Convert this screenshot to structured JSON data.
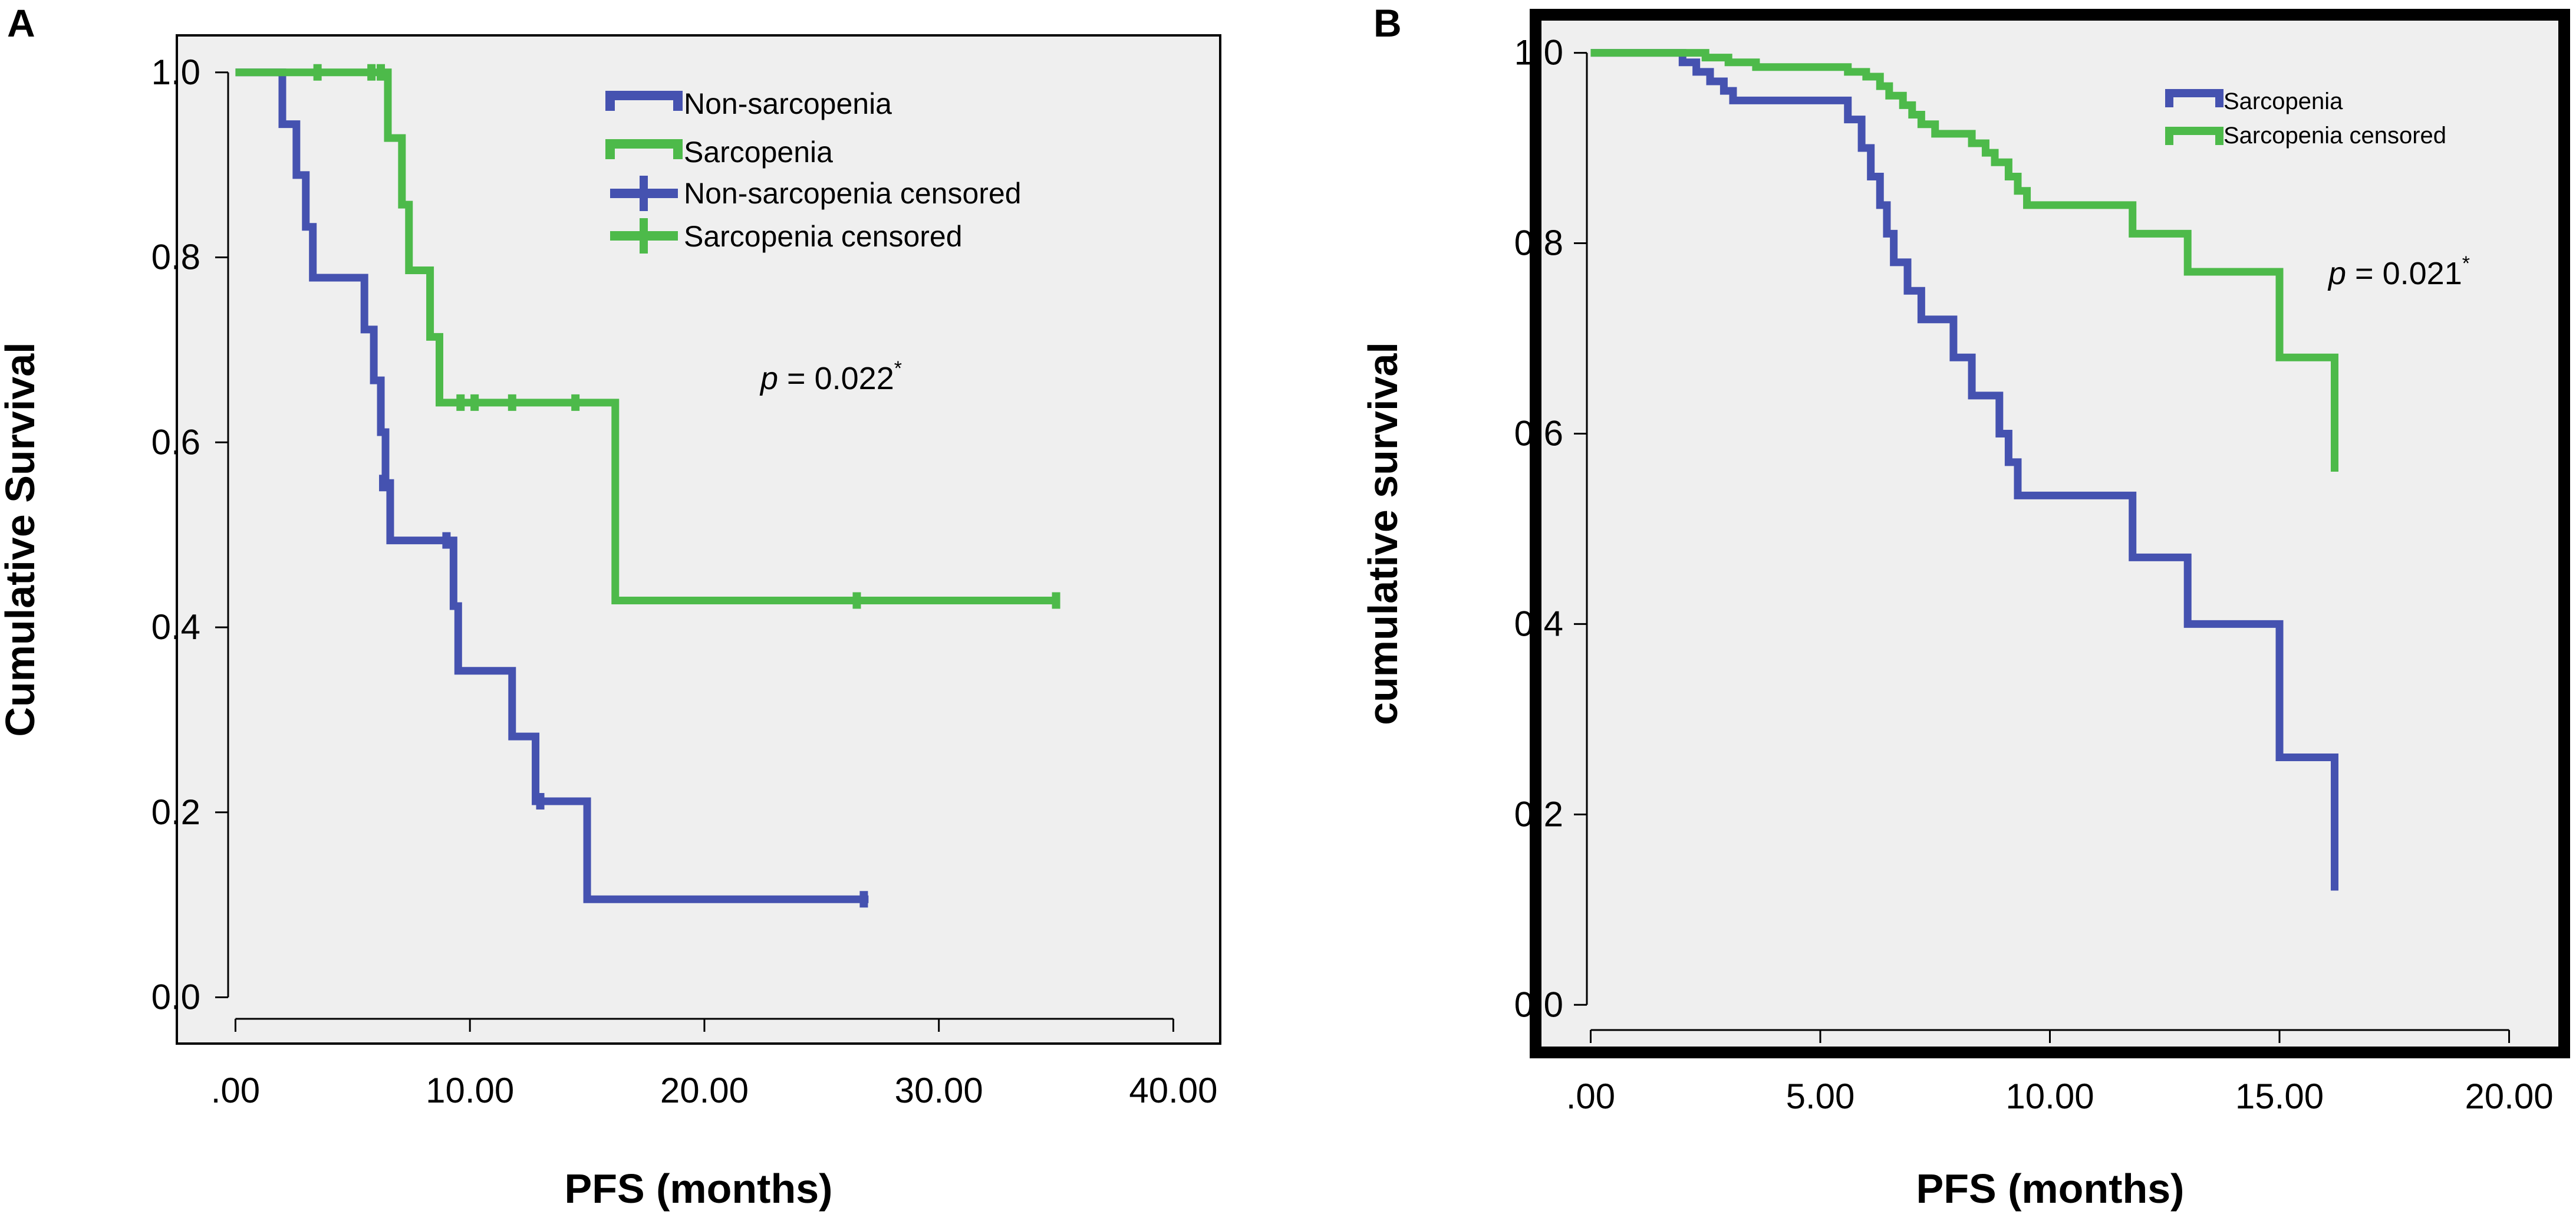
{
  "colors": {
    "plot_background": "#efefef",
    "non_sarcopenia": "#4552b0",
    "sarcopenia": "#4dba4a",
    "axis": "#000000",
    "text": "#000000"
  },
  "chart_data": [
    {
      "panel_label": "A",
      "type": "line",
      "subtype": "kaplan-meier",
      "title": "",
      "xlabel": "PFS (months)",
      "ylabel": "Cumulative Survival",
      "xlim": [
        -2.5,
        42
      ],
      "ylim": [
        -0.05,
        1.04
      ],
      "xticks": [
        0,
        10,
        20,
        30,
        40
      ],
      "xtick_labels": [
        ".00",
        "10.00",
        "20.00",
        "30.00",
        "40.00"
      ],
      "yticks": [
        0,
        0.2,
        0.4,
        0.6,
        0.8,
        1.0
      ],
      "ytick_labels": [
        "0.0",
        "0.2",
        "0.4",
        "0.6",
        "0.8",
        "1.0"
      ],
      "legend": {
        "position": "top-right",
        "entries": [
          {
            "label": "Non-sarcopenia",
            "series": "non_sarcopenia",
            "style": "step"
          },
          {
            "label": "Sarcopenia",
            "series": "sarcopenia",
            "style": "step"
          },
          {
            "label": "Non-sarcopenia censored",
            "series": "non_sarcopenia",
            "style": "censor"
          },
          {
            "label": "Sarcopenia censored",
            "series": "sarcopenia",
            "style": "censor"
          }
        ]
      },
      "annotation": {
        "prefix": "p",
        "text": " = 0.022",
        "sup": "*"
      },
      "series": [
        {
          "name": "Non-sarcopenia",
          "color_key": "non_sarcopenia",
          "steps": [
            [
              0,
              1.0
            ],
            [
              2.0,
              0.944
            ],
            [
              2.6,
              0.889
            ],
            [
              3.0,
              0.833
            ],
            [
              3.3,
              0.778
            ],
            [
              5.5,
              0.722
            ],
            [
              5.9,
              0.667
            ],
            [
              6.2,
              0.611
            ],
            [
              6.4,
              0.556
            ],
            [
              6.6,
              0.494
            ],
            [
              9.0,
              0.494
            ],
            [
              9.3,
              0.423
            ],
            [
              9.5,
              0.353
            ],
            [
              11.8,
              0.282
            ],
            [
              12.8,
              0.212
            ],
            [
              15.0,
              0.106
            ],
            [
              27.0,
              0.106
            ]
          ],
          "censored": [
            [
              6.3,
              0.556
            ],
            [
              9.0,
              0.494
            ],
            [
              13.0,
              0.212
            ],
            [
              26.8,
              0.106
            ]
          ]
        },
        {
          "name": "Sarcopenia",
          "color_key": "sarcopenia",
          "steps": [
            [
              0,
              1.0
            ],
            [
              6.5,
              0.929
            ],
            [
              7.1,
              0.857
            ],
            [
              7.4,
              0.786
            ],
            [
              8.3,
              0.714
            ],
            [
              8.7,
              0.643
            ],
            [
              16.2,
              0.429
            ],
            [
              35.0,
              0.429
            ]
          ],
          "censored": [
            [
              3.5,
              1.0
            ],
            [
              5.8,
              1.0
            ],
            [
              6.2,
              1.0
            ],
            [
              9.6,
              0.643
            ],
            [
              10.2,
              0.643
            ],
            [
              11.8,
              0.643
            ],
            [
              14.5,
              0.643
            ],
            [
              26.5,
              0.429
            ],
            [
              35.0,
              0.429
            ]
          ]
        }
      ]
    },
    {
      "panel_label": "B",
      "type": "line",
      "subtype": "kaplan-meier",
      "title": "",
      "xlabel": "PFS (months)",
      "ylabel": "cumulative survival",
      "xlim": [
        -1.2,
        21.2
      ],
      "ylim": [
        -0.05,
        1.04
      ],
      "xticks": [
        0,
        5,
        10,
        15,
        20
      ],
      "xtick_labels": [
        ".00",
        "5.00",
        "10.00",
        "15.00",
        "20.00"
      ],
      "yticks": [
        0,
        0.2,
        0.4,
        0.6,
        0.8,
        1.0
      ],
      "ytick_labels": [
        "0.0",
        "0.2",
        "0.4",
        "0.6",
        "0.8",
        "1.0"
      ],
      "legend": {
        "position": "top-right",
        "entries": [
          {
            "label": "Sarcopenia",
            "series": "non_sarcopenia",
            "style": "step"
          },
          {
            "label": "Sarcopenia censored",
            "series": "sarcopenia",
            "style": "step"
          }
        ]
      },
      "annotation": {
        "prefix": "p",
        "text": " = 0.021",
        "sup": "*"
      },
      "series": [
        {
          "name": "Sarcopenia",
          "color_key": "non_sarcopenia",
          "steps": [
            [
              0,
              1.0
            ],
            [
              2.0,
              0.99
            ],
            [
              2.3,
              0.98
            ],
            [
              2.6,
              0.97
            ],
            [
              2.9,
              0.96
            ],
            [
              3.1,
              0.95
            ],
            [
              5.6,
              0.93
            ],
            [
              5.9,
              0.9
            ],
            [
              6.1,
              0.87
            ],
            [
              6.3,
              0.84
            ],
            [
              6.45,
              0.81
            ],
            [
              6.6,
              0.78
            ],
            [
              6.9,
              0.75
            ],
            [
              7.2,
              0.72
            ],
            [
              7.9,
              0.68
            ],
            [
              8.3,
              0.64
            ],
            [
              8.9,
              0.6
            ],
            [
              9.1,
              0.57
            ],
            [
              9.3,
              0.535
            ],
            [
              11.8,
              0.47
            ],
            [
              13.0,
              0.4
            ],
            [
              15.0,
              0.26
            ],
            [
              16.2,
              0.12
            ]
          ],
          "censored": []
        },
        {
          "name": "Sarcopenia censored",
          "color_key": "sarcopenia",
          "steps": [
            [
              0,
              1.0
            ],
            [
              2.5,
              0.995
            ],
            [
              3.0,
              0.99
            ],
            [
              3.6,
              0.985
            ],
            [
              5.6,
              0.98
            ],
            [
              6.0,
              0.975
            ],
            [
              6.3,
              0.965
            ],
            [
              6.5,
              0.955
            ],
            [
              6.8,
              0.945
            ],
            [
              7.0,
              0.935
            ],
            [
              7.2,
              0.925
            ],
            [
              7.5,
              0.915
            ],
            [
              8.3,
              0.905
            ],
            [
              8.6,
              0.895
            ],
            [
              8.8,
              0.885
            ],
            [
              9.1,
              0.87
            ],
            [
              9.3,
              0.855
            ],
            [
              9.5,
              0.84
            ],
            [
              11.8,
              0.81
            ],
            [
              13.0,
              0.77
            ],
            [
              15.0,
              0.68
            ],
            [
              16.2,
              0.56
            ]
          ],
          "censored": []
        }
      ]
    }
  ]
}
